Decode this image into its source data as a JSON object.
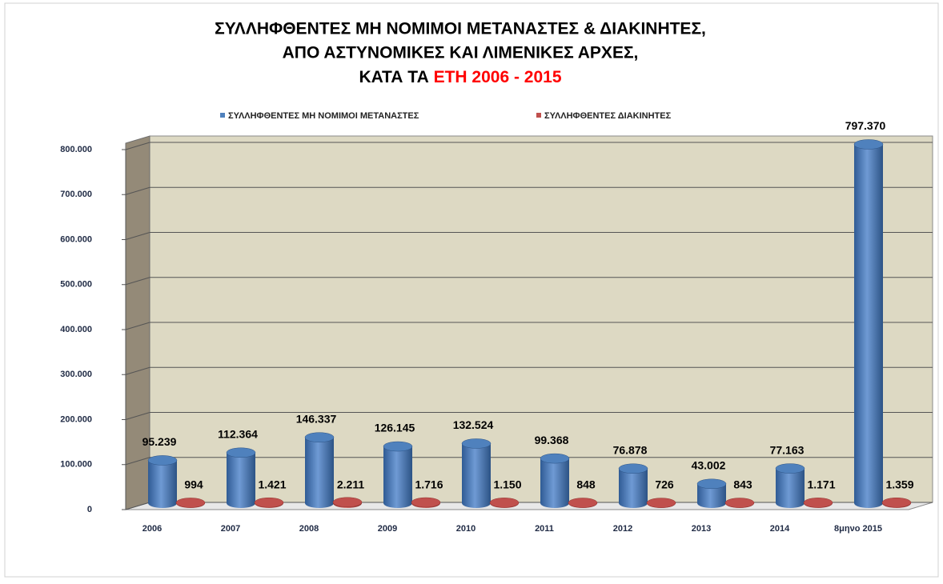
{
  "chart_data": {
    "type": "bar3d",
    "title": [
      "ΣΥΛΛΗΦΘΕΝΤΕΣ ΜΗ ΝΟΜΙΜΟΙ ΜΕΤΑΝΑΣΤΕΣ & ΔΙΑΚΙΝΗΤΕΣ,",
      "ΑΠΟ ΑΣΤΥΝΟΜΙΚΕΣ ΚΑΙ ΛΙΜΕΝΙΚΕΣ ΑΡΧΕΣ,",
      "ΚΑΤΑ ΤΑ",
      "ΕΤΗ 2006 - 2015"
    ],
    "title_colors": [
      "#000000",
      "#000000",
      "#000000",
      "#ff0000"
    ],
    "categories": [
      "2006",
      "2007",
      "2008",
      "2009",
      "2010",
      "2011",
      "2012",
      "2013",
      "2014",
      "8μηνο 2015"
    ],
    "series": [
      {
        "name": "ΣΥΛΛΗΦΘΕΝΤΕΣ ΜΗ ΝΟΜΙΜΟΙ ΜΕΤΑΝΑΣΤΕΣ",
        "color": "#4f81bd",
        "values": [
          95239,
          112364,
          146337,
          126145,
          132524,
          99368,
          76878,
          43002,
          77163,
          797370
        ],
        "value_labels": [
          "95.239",
          "112.364",
          "146.337",
          "126.145",
          "132.524",
          "99.368",
          "76.878",
          "43.002",
          "77.163",
          "797.370"
        ]
      },
      {
        "name": "ΣΥΛΛΗΦΘΕΝΤΕΣ ΔΙΑΚΙΝΗΤΕΣ",
        "color": "#c0504d",
        "values": [
          994,
          1421,
          2211,
          1716,
          1150,
          848,
          726,
          843,
          1171,
          1359
        ],
        "value_labels": [
          "994",
          "1.421",
          "2.211",
          "1.716",
          "1.150",
          "848",
          "726",
          "843",
          "1.171",
          "1.359"
        ]
      }
    ],
    "ylim": [
      0,
      800000
    ],
    "yticks": [
      0,
      {
        "value": 100000,
        "label": "100.000"
      },
      {
        "value": 200000,
        "label": "200.000"
      },
      {
        "value": 300000,
        "label": "300.000"
      },
      {
        "value": 400000,
        "label": "400.000"
      },
      {
        "value": 500000,
        "label": "500.000"
      },
      {
        "value": 600000,
        "label": "600.000"
      },
      {
        "value": 700000,
        "label": "700.000"
      },
      {
        "value": 800000,
        "label": "800.000"
      }
    ],
    "grid": true,
    "legend": "top"
  }
}
